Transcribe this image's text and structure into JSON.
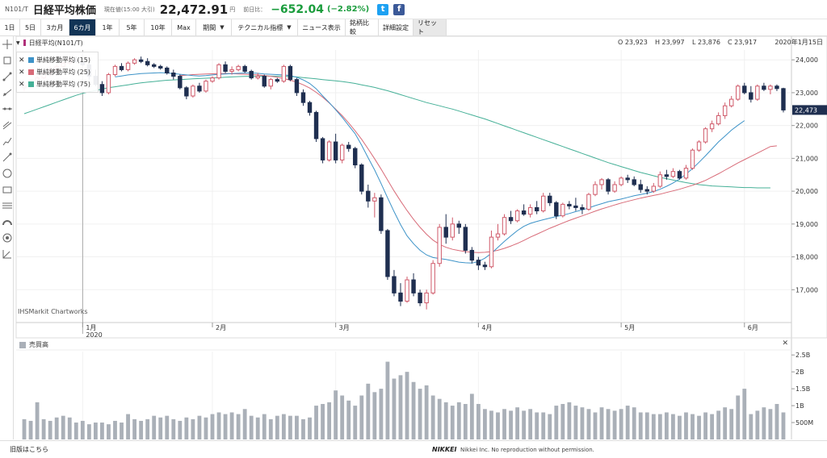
{
  "header": {
    "code": "N101/T",
    "name": "日経平均株価",
    "price_label": "現在値(15:00 大引)",
    "price": "22,472.91",
    "price_unit": "円",
    "change_label": "前日比：",
    "change": "−652.04",
    "change_pct": "(−2.82%)",
    "twitter_label": "t",
    "facebook_label": "f",
    "colors": {
      "down": "#1a9c3c",
      "twitter": "#1da1f2",
      "facebook": "#3b5998"
    }
  },
  "toolbar": {
    "periods": [
      "1日",
      "5日",
      "3カ月",
      "6カ月",
      "1年",
      "5年",
      "10年",
      "Max"
    ],
    "active_period": "6カ月",
    "interval_label": "期間",
    "technical_label": "テクニカル指標",
    "news_label": "ニュース表示",
    "compare_label": "銘柄比較",
    "settings_label": "詳細設定",
    "reset_label": "リセット"
  },
  "tools": [
    "crosshair-icon",
    "zoom-box-icon",
    "trend-line-icon",
    "ray-icon",
    "horizontal-line-icon",
    "channel-icon",
    "fib-icon",
    "arrow-line-icon",
    "circle-icon",
    "rectangle-icon",
    "parallel-lines-icon",
    "arc-icon",
    "target-icon",
    "angle-icon"
  ],
  "chart_header": {
    "symbol": "日経平均(N101/T)",
    "open": "O 23,923",
    "high": "H 23,997",
    "low": "L 23,876",
    "close": "C 23,917",
    "date": "2020年1月15日"
  },
  "legend": [
    {
      "label": "単純移動平均 (15)",
      "color": "#3d93c8"
    },
    {
      "label": "単純移動平均 (25)",
      "color": "#d86b78"
    },
    {
      "label": "単純移動平均 (75)",
      "color": "#45b097"
    }
  ],
  "watermark": "IHSMarkit Chartworks",
  "volume_header": "売買高",
  "footer": {
    "old_version": "旧版はこちら",
    "brand": "NIKKEI",
    "copyright": "Nikkei Inc. No reproduction without permission."
  },
  "chart_data": {
    "type": "candlestick",
    "price_axis": {
      "min": 16000,
      "max": 24300,
      "ticks": [
        17000,
        18000,
        19000,
        20000,
        21000,
        22000,
        23000,
        24000
      ],
      "tick_labels": [
        "17,000",
        "18,000",
        "19,000",
        "20,000",
        "21,000",
        "22,000",
        "23,000",
        "24,000"
      ]
    },
    "current_price_label": "22,473",
    "x_labels": [
      {
        "day": 9,
        "label": "1月"
      },
      {
        "day": 9,
        "label": "2020"
      },
      {
        "day": 29,
        "label": "2月"
      },
      {
        "day": 48,
        "label": "3月"
      },
      {
        "day": 70,
        "label": "4月"
      },
      {
        "day": 92,
        "label": "5月"
      },
      {
        "day": 111,
        "label": "6月"
      }
    ],
    "month_gridlines": [
      9,
      29,
      48,
      70,
      92,
      111
    ],
    "candles": [
      [
        23150,
        23300,
        23050,
        23200
      ],
      [
        23200,
        23380,
        23150,
        23300
      ],
      [
        23300,
        23500,
        23200,
        23450
      ],
      [
        23450,
        23650,
        23400,
        23600
      ],
      [
        23600,
        23800,
        23500,
        23700
      ],
      [
        23700,
        23850,
        23600,
        23800
      ],
      [
        23800,
        23950,
        23700,
        23900
      ],
      [
        23900,
        24050,
        23850,
        24000
      ],
      [
        24000,
        24100,
        23900,
        23950
      ],
      [
        23950,
        24050,
        23800,
        23850
      ],
      [
        23850,
        23900,
        23400,
        23500
      ],
      [
        23500,
        23700,
        23200,
        23250
      ],
      [
        23250,
        23350,
        22900,
        23000
      ],
      [
        23000,
        23600,
        22950,
        23550
      ],
      [
        23550,
        23850,
        23500,
        23800
      ],
      [
        23800,
        23900,
        23650,
        23700
      ],
      [
        23700,
        23950,
        23650,
        23900
      ],
      [
        23900,
        24050,
        23850,
        24000
      ],
      [
        24000,
        24100,
        23900,
        23950
      ],
      [
        23950,
        24050,
        23800,
        23850
      ],
      [
        23850,
        23900,
        23750,
        23800
      ],
      [
        23800,
        23850,
        23700,
        23750
      ],
      [
        23750,
        23800,
        23550,
        23600
      ],
      [
        23600,
        23700,
        23400,
        23500
      ],
      [
        23500,
        23550,
        23100,
        23150
      ],
      [
        23150,
        23200,
        22800,
        22900
      ],
      [
        22900,
        23250,
        22850,
        23200
      ],
      [
        23200,
        23300,
        23000,
        23050
      ],
      [
        23050,
        23400,
        23000,
        23350
      ],
      [
        23350,
        23500,
        23300,
        23450
      ],
      [
        23450,
        23900,
        23400,
        23850
      ],
      [
        23850,
        23950,
        23600,
        23650
      ],
      [
        23650,
        23800,
        23550,
        23700
      ],
      [
        23700,
        23850,
        23650,
        23800
      ],
      [
        23800,
        23850,
        23600,
        23650
      ],
      [
        23650,
        23700,
        23400,
        23450
      ],
      [
        23450,
        23600,
        23400,
        23500
      ],
      [
        23500,
        23550,
        23150,
        23200
      ],
      [
        23200,
        23450,
        23100,
        23400
      ],
      [
        23400,
        23450,
        23300,
        23350
      ],
      [
        23350,
        23850,
        23300,
        23800
      ],
      [
        23800,
        23850,
        23350,
        23400
      ],
      [
        23400,
        23450,
        22900,
        23000
      ],
      [
        23000,
        23100,
        22600,
        22700
      ],
      [
        22700,
        22750,
        22300,
        22400
      ],
      [
        22400,
        22450,
        21500,
        21600
      ],
      [
        21600,
        21650,
        20850,
        20950
      ],
      [
        20950,
        21550,
        20900,
        21500
      ],
      [
        21500,
        21750,
        20850,
        20950
      ],
      [
        20950,
        21450,
        20850,
        21400
      ],
      [
        21400,
        21500,
        21200,
        21300
      ],
      [
        21300,
        21350,
        20700,
        20800
      ],
      [
        20800,
        20850,
        19900,
        20000
      ],
      [
        20000,
        20200,
        19500,
        19700
      ],
      [
        19700,
        19950,
        19200,
        19800
      ],
      [
        19800,
        19900,
        18700,
        18800
      ],
      [
        18800,
        18850,
        17300,
        17400
      ],
      [
        17400,
        17600,
        16800,
        16900
      ],
      [
        16900,
        17200,
        16500,
        16650
      ],
      [
        16650,
        17400,
        16600,
        17300
      ],
      [
        17300,
        17500,
        16800,
        16900
      ],
      [
        16900,
        17000,
        16500,
        16600
      ],
      [
        16600,
        17000,
        16400,
        16900
      ],
      [
        16900,
        17900,
        16850,
        17800
      ],
      [
        17800,
        19000,
        17700,
        18900
      ],
      [
        18900,
        19300,
        18400,
        18600
      ],
      [
        18600,
        19200,
        18500,
        19000
      ],
      [
        19000,
        19100,
        18700,
        18900
      ],
      [
        18900,
        19000,
        18100,
        18200
      ],
      [
        18200,
        18300,
        17800,
        17900
      ],
      [
        17900,
        18000,
        17600,
        17750
      ],
      [
        17750,
        17850,
        17600,
        17700
      ],
      [
        17700,
        18800,
        17650,
        18600
      ],
      [
        18600,
        19000,
        18500,
        18700
      ],
      [
        18700,
        19300,
        18650,
        19200
      ],
      [
        19200,
        19400,
        19000,
        19100
      ],
      [
        19100,
        19450,
        19050,
        19400
      ],
      [
        19400,
        19600,
        19250,
        19300
      ],
      [
        19300,
        19600,
        19200,
        19500
      ],
      [
        19500,
        19700,
        19300,
        19400
      ],
      [
        19400,
        19950,
        19350,
        19850
      ],
      [
        19850,
        19950,
        19550,
        19650
      ],
      [
        19650,
        19700,
        19150,
        19250
      ],
      [
        19250,
        19650,
        19200,
        19600
      ],
      [
        19600,
        19700,
        19450,
        19550
      ],
      [
        19550,
        19800,
        19400,
        19500
      ],
      [
        19500,
        19600,
        19300,
        19450
      ],
      [
        19450,
        19950,
        19400,
        19900
      ],
      [
        19900,
        20300,
        19850,
        20200
      ],
      [
        20200,
        20400,
        20050,
        20350
      ],
      [
        20350,
        20400,
        19900,
        20000
      ],
      [
        20000,
        20300,
        19950,
        20200
      ],
      [
        20200,
        20450,
        20150,
        20400
      ],
      [
        20400,
        20500,
        20250,
        20350
      ],
      [
        20350,
        20450,
        20150,
        20200
      ],
      [
        20200,
        20350,
        19950,
        20050
      ],
      [
        20050,
        20150,
        19900,
        20000
      ],
      [
        20000,
        20250,
        19950,
        20150
      ],
      [
        20150,
        20600,
        20100,
        20500
      ],
      [
        20500,
        20650,
        20350,
        20450
      ],
      [
        20450,
        20700,
        20400,
        20600
      ],
      [
        20600,
        20650,
        20350,
        20400
      ],
      [
        20400,
        20800,
        20350,
        20700
      ],
      [
        20700,
        21300,
        20650,
        21250
      ],
      [
        21250,
        21550,
        21200,
        21500
      ],
      [
        21500,
        21950,
        21450,
        21900
      ],
      [
        21900,
        22150,
        21800,
        22050
      ],
      [
        22050,
        22400,
        22000,
        22300
      ],
      [
        22300,
        22700,
        22200,
        22600
      ],
      [
        22600,
        22900,
        22550,
        22800
      ],
      [
        22800,
        23250,
        22750,
        23200
      ],
      [
        23200,
        23300,
        22950,
        23000
      ],
      [
        23000,
        23200,
        22700,
        22800
      ],
      [
        22800,
        23250,
        22750,
        23200
      ],
      [
        23200,
        23300,
        23050,
        23100
      ],
      [
        23100,
        23250,
        22950,
        23200
      ],
      [
        23200,
        23250,
        23050,
        23125
      ],
      [
        23125,
        23150,
        22400,
        22473
      ]
    ],
    "volume_axis": {
      "min": 0,
      "max": 2.6,
      "ticks": [
        0.5,
        1,
        1.5,
        2,
        2.5
      ],
      "tick_labels": [
        "500M",
        "1B",
        "1.5B",
        "2B",
        "2.5B"
      ]
    },
    "volumes": [
      0.6,
      0.55,
      1.1,
      0.6,
      0.55,
      0.65,
      0.7,
      0.65,
      0.5,
      0.55,
      0.45,
      0.5,
      0.5,
      0.45,
      0.55,
      0.5,
      0.75,
      0.6,
      0.55,
      0.6,
      0.7,
      0.65,
      0.7,
      0.6,
      0.55,
      0.65,
      0.6,
      0.7,
      0.65,
      0.75,
      0.8,
      0.75,
      0.8,
      0.75,
      0.9,
      0.7,
      0.65,
      0.75,
      0.6,
      0.7,
      0.75,
      0.7,
      0.7,
      0.6,
      0.65,
      1.0,
      1.05,
      1.1,
      1.45,
      1.3,
      1.15,
      1.0,
      1.3,
      1.65,
      1.4,
      1.5,
      2.3,
      1.8,
      1.9,
      2.0,
      1.7,
      1.5,
      1.6,
      1.3,
      1.2,
      1.1,
      1.0,
      1.1,
      1.05,
      1.35,
      1.05,
      0.9,
      0.85,
      0.8,
      0.9,
      0.85,
      0.95,
      0.85,
      0.9,
      0.8,
      0.8,
      0.75,
      1.0,
      1.05,
      1.1,
      1.0,
      0.95,
      0.9,
      0.8,
      0.95,
      0.9,
      0.85,
      0.9,
      1.0,
      0.95,
      0.8,
      0.8,
      0.75,
      0.75,
      0.8,
      0.75,
      0.7,
      0.8,
      0.75,
      0.7,
      0.8,
      0.75,
      0.85,
      0.95,
      0.9,
      1.3,
      1.5,
      0.75,
      0.85,
      0.95,
      0.9,
      1.05,
      0.8
    ],
    "sma15": [
      null,
      null,
      null,
      null,
      null,
      null,
      null,
      null,
      null,
      null,
      null,
      null,
      null,
      null,
      23480,
      23510,
      23540,
      23560,
      23580,
      23590,
      23600,
      23610,
      23600,
      23580,
      23560,
      23540,
      23520,
      23510,
      23520,
      23540,
      23560,
      23570,
      23580,
      23590,
      23600,
      23600,
      23590,
      23570,
      23560,
      23550,
      23540,
      23520,
      23470,
      23390,
      23280,
      23120,
      22900,
      22700,
      22480,
      22250,
      22000,
      21750,
      21400,
      21020,
      20650,
      20230,
      19800,
      19380,
      18980,
      18640,
      18400,
      18200,
      18060,
      17980,
      17950,
      17920,
      17880,
      17840,
      17820,
      17810,
      17860,
      17960,
      18110,
      18290,
      18470,
      18640,
      18800,
      18930,
      19020,
      19080,
      19130,
      19180,
      19230,
      19270,
      19320,
      19380,
      19430,
      19490,
      19560,
      19620,
      19680,
      19720,
      19760,
      19810,
      19860,
      19900,
      19940,
      19990,
      20060,
      20150,
      20250,
      20370,
      20520,
      20690,
      20880,
      21080,
      21290,
      21500,
      21680,
      21860,
      22010,
      22150
    ],
    "sma25": [
      null,
      null,
      null,
      null,
      null,
      null,
      null,
      null,
      null,
      null,
      null,
      null,
      null,
      null,
      null,
      null,
      null,
      null,
      null,
      null,
      null,
      null,
      null,
      null,
      23520,
      23535,
      23550,
      23560,
      23570,
      23575,
      23580,
      23585,
      23580,
      23570,
      23560,
      23550,
      23540,
      23520,
      23500,
      23470,
      23430,
      23380,
      23320,
      23240,
      23140,
      23010,
      22860,
      22690,
      22500,
      22300,
      22080,
      21840,
      21580,
      21290,
      20990,
      20670,
      20340,
      20010,
      19700,
      19410,
      19140,
      18900,
      18690,
      18510,
      18380,
      18290,
      18230,
      18190,
      18160,
      18140,
      18130,
      18140,
      18160,
      18200,
      18260,
      18330,
      18410,
      18500,
      18600,
      18690,
      18780,
      18870,
      18950,
      19030,
      19110,
      19180,
      19250,
      19320,
      19390,
      19460,
      19520,
      19580,
      19640,
      19690,
      19740,
      19790,
      19830,
      19870,
      19910,
      19960,
      20010,
      20060,
      20120,
      20180,
      20250,
      20330,
      20430,
      20530,
      20640,
      20750,
      20860,
      20960,
      21060,
      21160,
      21260,
      21360,
      21380
    ],
    "sma75": [
      22360,
      22430,
      22500,
      22570,
      22640,
      22710,
      22780,
      22850,
      22920,
      22980,
      23030,
      23070,
      23110,
      23150,
      23180,
      23210,
      23240,
      23270,
      23300,
      23320,
      23340,
      23360,
      23380,
      23390,
      23400,
      23410,
      23420,
      23430,
      23440,
      23450,
      23460,
      23470,
      23480,
      23490,
      23495,
      23500,
      23505,
      23505,
      23505,
      23505,
      23500,
      23490,
      23480,
      23460,
      23440,
      23420,
      23400,
      23380,
      23360,
      23340,
      23310,
      23280,
      23240,
      23200,
      23160,
      23110,
      23060,
      23000,
      22940,
      22880,
      22820,
      22760,
      22700,
      22650,
      22600,
      22550,
      22500,
      22440,
      22380,
      22320,
      22260,
      22200,
      22130,
      22060,
      21990,
      21920,
      21850,
      21780,
      21710,
      21640,
      21570,
      21500,
      21430,
      21360,
      21290,
      21220,
      21150,
      21080,
      21010,
      20940,
      20870,
      20810,
      20750,
      20690,
      20630,
      20570,
      20520,
      20470,
      20420,
      20380,
      20340,
      20300,
      20260,
      20230,
      20200,
      20180,
      20160,
      20150,
      20140,
      20130,
      20120,
      20110,
      20110,
      20100,
      20100,
      20100
    ]
  }
}
